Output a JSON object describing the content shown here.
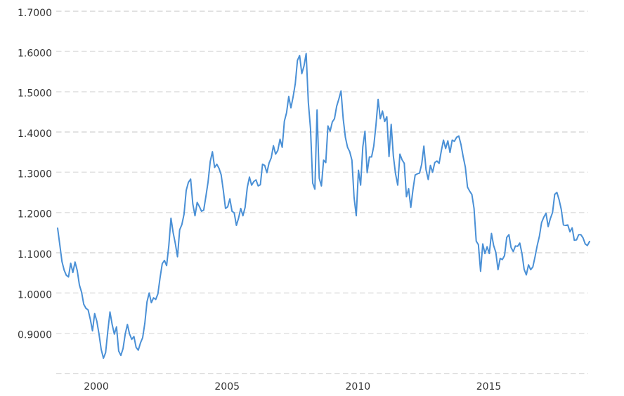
{
  "chart_data": {
    "type": "line",
    "title": "",
    "legend": "none",
    "grid": "horizontal-dashed",
    "x_start": "1999-01",
    "x_end": "2019-05",
    "x_step": "1 month",
    "xlim": [
      "1999-01",
      "2019-05"
    ],
    "ylim": [
      0.8,
      1.7
    ],
    "x_tick_dates": [
      "2000-01",
      "2005-01",
      "2010-01",
      "2015-01"
    ],
    "x_tick_labels": [
      "2000",
      "2005",
      "2010",
      "2015"
    ],
    "y_gridline_values": [
      1.7,
      1.6,
      1.5,
      1.4,
      1.3,
      1.2,
      1.1,
      1.0,
      0.9,
      0.8
    ],
    "y_axis_labels": [
      "1.7000",
      "1.6000",
      "1.5000",
      "1.4000",
      "1.3000",
      "1.2000",
      "1.1000",
      "1.0000",
      "0.9000",
      ""
    ],
    "monthly_values_by_year": {
      "1999": [
        1.161,
        1.12,
        1.078,
        1.057,
        1.044,
        1.04,
        1.074,
        1.051,
        1.077,
        1.056,
        1.02,
        1.002
      ],
      "2000": [
        0.972,
        0.962,
        0.958,
        0.935,
        0.906,
        0.949,
        0.93,
        0.898,
        0.86,
        0.838,
        0.852,
        0.905
      ],
      "2001": [
        0.953,
        0.922,
        0.898,
        0.916,
        0.856,
        0.845,
        0.862,
        0.898,
        0.922,
        0.898,
        0.885,
        0.892
      ],
      "2002": [
        0.865,
        0.858,
        0.876,
        0.889,
        0.925,
        0.978,
        1.0,
        0.976,
        0.988,
        0.984,
        0.998,
        1.038
      ],
      "2003": [
        1.073,
        1.081,
        1.068,
        1.117,
        1.186,
        1.15,
        1.123,
        1.09,
        1.157,
        1.17,
        1.196,
        1.255
      ],
      "2004": [
        1.275,
        1.283,
        1.221,
        1.192,
        1.225,
        1.215,
        1.203,
        1.206,
        1.24,
        1.276,
        1.327,
        1.351
      ],
      "2005": [
        1.312,
        1.32,
        1.31,
        1.294,
        1.255,
        1.21,
        1.214,
        1.234,
        1.203,
        1.199,
        1.168,
        1.186
      ],
      "2006": [
        1.21,
        1.192,
        1.213,
        1.262,
        1.288,
        1.268,
        1.277,
        1.281,
        1.266,
        1.269,
        1.32,
        1.317
      ],
      "2007": [
        1.299,
        1.323,
        1.336,
        1.366,
        1.345,
        1.354,
        1.382,
        1.362,
        1.427,
        1.448,
        1.488,
        1.46
      ],
      "2008": [
        1.487,
        1.52,
        1.578,
        1.59,
        1.545,
        1.564,
        1.595,
        1.473,
        1.408,
        1.273,
        1.258,
        1.455
      ],
      "2009": [
        1.285,
        1.266,
        1.33,
        1.324,
        1.415,
        1.402,
        1.425,
        1.433,
        1.464,
        1.482,
        1.502,
        1.433
      ],
      "2010": [
        1.387,
        1.362,
        1.351,
        1.33,
        1.237,
        1.192,
        1.305,
        1.268,
        1.363,
        1.402,
        1.299,
        1.338
      ],
      "2011": [
        1.338,
        1.365,
        1.417,
        1.481,
        1.433,
        1.452,
        1.426,
        1.438,
        1.339,
        1.419,
        1.34,
        1.296
      ],
      "2012": [
        1.268,
        1.345,
        1.331,
        1.322,
        1.239,
        1.259,
        1.213,
        1.257,
        1.293,
        1.296,
        1.298,
        1.32
      ],
      "2013": [
        1.365,
        1.306,
        1.282,
        1.317,
        1.3,
        1.324,
        1.328,
        1.322,
        1.353,
        1.38,
        1.359,
        1.378
      ],
      "2014": [
        1.349,
        1.38,
        1.377,
        1.387,
        1.39,
        1.369,
        1.339,
        1.313,
        1.263,
        1.253,
        1.245,
        1.21
      ],
      "2015": [
        1.129,
        1.12,
        1.054,
        1.122,
        1.098,
        1.115,
        1.098,
        1.148,
        1.118,
        1.101,
        1.058,
        1.086
      ],
      "2016": [
        1.083,
        1.093,
        1.138,
        1.145,
        1.113,
        1.103,
        1.117,
        1.116,
        1.124,
        1.098,
        1.059,
        1.045
      ],
      "2017": [
        1.07,
        1.058,
        1.065,
        1.09,
        1.118,
        1.141,
        1.175,
        1.188,
        1.198,
        1.165,
        1.185,
        1.2
      ],
      "2018": [
        1.245,
        1.25,
        1.232,
        1.208,
        1.169,
        1.168,
        1.169,
        1.152,
        1.162,
        1.131,
        1.132,
        1.145
      ],
      "2019": [
        1.145,
        1.137,
        1.122,
        1.118,
        1.128
      ]
    },
    "colors": {
      "line": "#4a90d6",
      "gridline": "#e2e2e2",
      "axis_text": "#333333",
      "background": "#ffffff"
    }
  }
}
